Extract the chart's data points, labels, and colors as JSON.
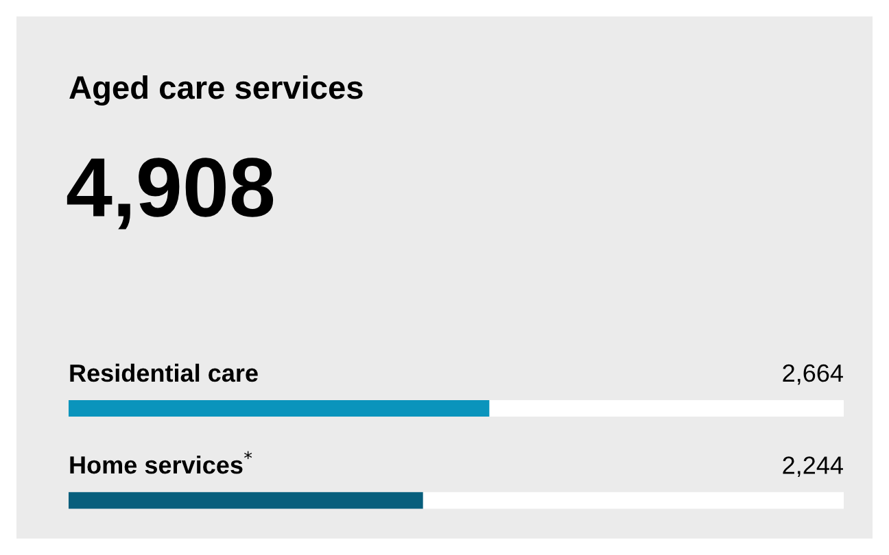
{
  "chart_data": {
    "type": "bar",
    "orientation": "horizontal",
    "title": "Aged care services",
    "subtitle": "4,908",
    "categories": [
      "Residential care",
      "Home services$^{*}$"
    ],
    "series": [
      {
        "colors": [
          "#0a94bc",
          "#075e7c"
        ],
        "values": [
          2664,
          2244
        ],
        "value_labels": [
          "2,664",
          "2,244"
        ]
      }
    ],
    "tick_labels": false
  }
}
